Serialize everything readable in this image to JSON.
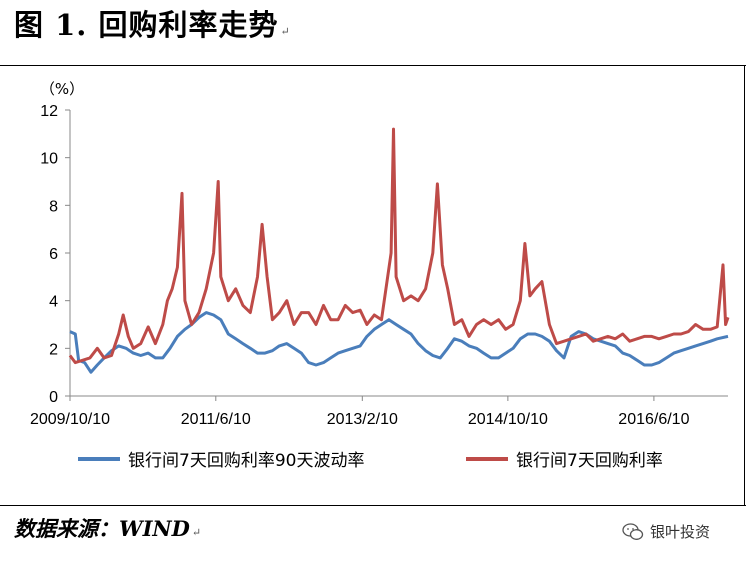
{
  "figure": {
    "title": "图 1. 回购利率走势",
    "para_mark": "↵",
    "source": "数据来源：WIND",
    "watermark": "银叶投资"
  },
  "chart_data": {
    "type": "line",
    "y_unit_label": "（%）",
    "ylim": [
      0,
      12
    ],
    "y_ticks": [
      "0",
      "2",
      "4",
      "6",
      "8",
      "10",
      "12"
    ],
    "x_tick_labels": [
      "2009/10/10",
      "2011/6/10",
      "2013/2/10",
      "2014/10/10",
      "2016/6/10"
    ],
    "x_range": [
      "2009/10/10",
      "2017/4/15"
    ],
    "grid": false,
    "legend_position": "bottom",
    "series": [
      {
        "name": "银行间7天回购利率90天波动率",
        "color": "#4A7EBB",
        "points": [
          [
            "2009/10/10",
            2.7
          ],
          [
            "2009/11/1",
            2.6
          ],
          [
            "2009/11/15",
            1.5
          ],
          [
            "2009/12/10",
            1.4
          ],
          [
            "2010/1/5",
            1.0
          ],
          [
            "2010/2/1",
            1.3
          ],
          [
            "2010/3/1",
            1.6
          ],
          [
            "2010/4/1",
            1.9
          ],
          [
            "2010/5/1",
            2.1
          ],
          [
            "2010/6/1",
            2.0
          ],
          [
            "2010/7/1",
            1.8
          ],
          [
            "2010/8/1",
            1.7
          ],
          [
            "2010/9/1",
            1.8
          ],
          [
            "2010/10/1",
            1.6
          ],
          [
            "2010/11/1",
            1.6
          ],
          [
            "2010/12/1",
            2.0
          ],
          [
            "2011/1/1",
            2.5
          ],
          [
            "2011/2/1",
            2.8
          ],
          [
            "2011/3/1",
            3.0
          ],
          [
            "2011/4/1",
            3.3
          ],
          [
            "2011/5/1",
            3.5
          ],
          [
            "2011/6/1",
            3.4
          ],
          [
            "2011/7/1",
            3.2
          ],
          [
            "2011/8/1",
            2.6
          ],
          [
            "2011/9/1",
            2.4
          ],
          [
            "2011/10/1",
            2.2
          ],
          [
            "2011/11/1",
            2.0
          ],
          [
            "2011/12/1",
            1.8
          ],
          [
            "2012/1/1",
            1.8
          ],
          [
            "2012/2/1",
            1.9
          ],
          [
            "2012/3/1",
            2.1
          ],
          [
            "2012/4/1",
            2.2
          ],
          [
            "2012/5/1",
            2.0
          ],
          [
            "2012/6/1",
            1.8
          ],
          [
            "2012/7/1",
            1.4
          ],
          [
            "2012/8/1",
            1.3
          ],
          [
            "2012/9/1",
            1.4
          ],
          [
            "2012/10/1",
            1.6
          ],
          [
            "2012/11/1",
            1.8
          ],
          [
            "2012/12/1",
            1.9
          ],
          [
            "2013/1/1",
            2.0
          ],
          [
            "2013/2/1",
            2.1
          ],
          [
            "2013/3/1",
            2.5
          ],
          [
            "2013/4/1",
            2.8
          ],
          [
            "2013/5/1",
            3.0
          ],
          [
            "2013/6/1",
            3.2
          ],
          [
            "2013/7/1",
            3.0
          ],
          [
            "2013/8/1",
            2.8
          ],
          [
            "2013/9/1",
            2.6
          ],
          [
            "2013/10/1",
            2.2
          ],
          [
            "2013/11/1",
            1.9
          ],
          [
            "2013/12/1",
            1.7
          ],
          [
            "2014/1/1",
            1.6
          ],
          [
            "2014/2/1",
            2.0
          ],
          [
            "2014/3/1",
            2.4
          ],
          [
            "2014/4/1",
            2.3
          ],
          [
            "2014/5/1",
            2.1
          ],
          [
            "2014/6/1",
            2.0
          ],
          [
            "2014/7/1",
            1.8
          ],
          [
            "2014/8/1",
            1.6
          ],
          [
            "2014/9/1",
            1.6
          ],
          [
            "2014/10/1",
            1.8
          ],
          [
            "2014/11/1",
            2.0
          ],
          [
            "2014/12/1",
            2.4
          ],
          [
            "2015/1/1",
            2.6
          ],
          [
            "2015/2/1",
            2.6
          ],
          [
            "2015/3/1",
            2.5
          ],
          [
            "2015/4/1",
            2.3
          ],
          [
            "2015/5/1",
            1.9
          ],
          [
            "2015/6/1",
            1.6
          ],
          [
            "2015/7/1",
            2.5
          ],
          [
            "2015/8/1",
            2.7
          ],
          [
            "2015/9/1",
            2.6
          ],
          [
            "2015/10/1",
            2.4
          ],
          [
            "2015/11/1",
            2.3
          ],
          [
            "2015/12/1",
            2.2
          ],
          [
            "2016/1/1",
            2.1
          ],
          [
            "2016/2/1",
            1.8
          ],
          [
            "2016/3/1",
            1.7
          ],
          [
            "2016/4/1",
            1.5
          ],
          [
            "2016/5/1",
            1.3
          ],
          [
            "2016/6/1",
            1.3
          ],
          [
            "2016/7/1",
            1.4
          ],
          [
            "2016/8/1",
            1.6
          ],
          [
            "2016/9/1",
            1.8
          ],
          [
            "2016/10/1",
            1.9
          ],
          [
            "2016/11/1",
            2.0
          ],
          [
            "2016/12/1",
            2.1
          ],
          [
            "2017/1/1",
            2.2
          ],
          [
            "2017/2/1",
            2.3
          ],
          [
            "2017/3/1",
            2.4
          ],
          [
            "2017/4/15",
            2.5
          ]
        ]
      },
      {
        "name": "银行间7天回购利率",
        "color": "#BE4B48",
        "points": [
          [
            "2009/10/10",
            1.7
          ],
          [
            "2009/11/1",
            1.4
          ],
          [
            "2009/12/1",
            1.5
          ],
          [
            "2010/1/1",
            1.6
          ],
          [
            "2010/2/1",
            2.0
          ],
          [
            "2010/3/1",
            1.6
          ],
          [
            "2010/4/1",
            1.7
          ],
          [
            "2010/5/1",
            2.6
          ],
          [
            "2010/5/20",
            3.4
          ],
          [
            "2010/6/10",
            2.5
          ],
          [
            "2010/7/1",
            2.0
          ],
          [
            "2010/8/1",
            2.2
          ],
          [
            "2010/9/1",
            2.9
          ],
          [
            "2010/10/1",
            2.2
          ],
          [
            "2010/11/1",
            3.0
          ],
          [
            "2010/11/20",
            4.0
          ],
          [
            "2010/12/10",
            4.5
          ],
          [
            "2011/1/1",
            5.4
          ],
          [
            "2011/1/20",
            8.5
          ],
          [
            "2011/2/1",
            4.0
          ],
          [
            "2011/3/1",
            3.0
          ],
          [
            "2011/4/1",
            3.5
          ],
          [
            "2011/5/1",
            4.5
          ],
          [
            "2011/6/1",
            6.0
          ],
          [
            "2011/6/20",
            9.0
          ],
          [
            "2011/7/1",
            5.0
          ],
          [
            "2011/8/1",
            4.0
          ],
          [
            "2011/9/1",
            4.5
          ],
          [
            "2011/10/1",
            3.8
          ],
          [
            "2011/11/1",
            3.5
          ],
          [
            "2011/12/1",
            5.0
          ],
          [
            "2011/12/20",
            7.2
          ],
          [
            "2012/1/10",
            5.0
          ],
          [
            "2012/2/1",
            3.2
          ],
          [
            "2012/3/1",
            3.5
          ],
          [
            "2012/4/1",
            4.0
          ],
          [
            "2012/5/1",
            3.0
          ],
          [
            "2012/6/1",
            3.5
          ],
          [
            "2012/7/1",
            3.5
          ],
          [
            "2012/8/1",
            3.0
          ],
          [
            "2012/9/1",
            3.8
          ],
          [
            "2012/10/1",
            3.2
          ],
          [
            "2012/11/1",
            3.2
          ],
          [
            "2012/12/1",
            3.8
          ],
          [
            "2013/1/1",
            3.5
          ],
          [
            "2013/2/1",
            3.6
          ],
          [
            "2013/3/1",
            3.0
          ],
          [
            "2013/4/1",
            3.4
          ],
          [
            "2013/5/1",
            3.2
          ],
          [
            "2013/6/10",
            6.0
          ],
          [
            "2013/6/20",
            11.2
          ],
          [
            "2013/7/1",
            5.0
          ],
          [
            "2013/8/1",
            4.0
          ],
          [
            "2013/9/1",
            4.2
          ],
          [
            "2013/10/1",
            4.0
          ],
          [
            "2013/11/1",
            4.5
          ],
          [
            "2013/12/1",
            6.0
          ],
          [
            "2013/12/20",
            8.9
          ],
          [
            "2014/1/10",
            5.5
          ],
          [
            "2014/2/1",
            4.5
          ],
          [
            "2014/3/1",
            3.0
          ],
          [
            "2014/4/1",
            3.2
          ],
          [
            "2014/5/1",
            2.5
          ],
          [
            "2014/6/1",
            3.0
          ],
          [
            "2014/7/1",
            3.2
          ],
          [
            "2014/8/1",
            3.0
          ],
          [
            "2014/9/1",
            3.2
          ],
          [
            "2014/10/1",
            2.8
          ],
          [
            "2014/11/1",
            3.0
          ],
          [
            "2014/12/1",
            4.0
          ],
          [
            "2014/12/20",
            6.4
          ],
          [
            "2015/1/10",
            4.2
          ],
          [
            "2015/2/1",
            4.5
          ],
          [
            "2015/3/1",
            4.8
          ],
          [
            "2015/4/1",
            3.0
          ],
          [
            "2015/5/1",
            2.2
          ],
          [
            "2015/6/1",
            2.3
          ],
          [
            "2015/7/1",
            2.4
          ],
          [
            "2015/8/1",
            2.5
          ],
          [
            "2015/9/1",
            2.6
          ],
          [
            "2015/10/1",
            2.3
          ],
          [
            "2015/11/1",
            2.4
          ],
          [
            "2015/12/1",
            2.5
          ],
          [
            "2016/1/1",
            2.4
          ],
          [
            "2016/2/1",
            2.6
          ],
          [
            "2016/3/1",
            2.3
          ],
          [
            "2016/4/1",
            2.4
          ],
          [
            "2016/5/1",
            2.5
          ],
          [
            "2016/6/1",
            2.5
          ],
          [
            "2016/7/1",
            2.4
          ],
          [
            "2016/8/1",
            2.5
          ],
          [
            "2016/9/1",
            2.6
          ],
          [
            "2016/10/1",
            2.6
          ],
          [
            "2016/11/1",
            2.7
          ],
          [
            "2016/12/1",
            3.0
          ],
          [
            "2017/1/1",
            2.8
          ],
          [
            "2017/2/1",
            2.8
          ],
          [
            "2017/3/1",
            2.9
          ],
          [
            "2017/3/25",
            5.5
          ],
          [
            "2017/4/5",
            3.0
          ],
          [
            "2017/4/15",
            3.3
          ]
        ]
      }
    ]
  }
}
